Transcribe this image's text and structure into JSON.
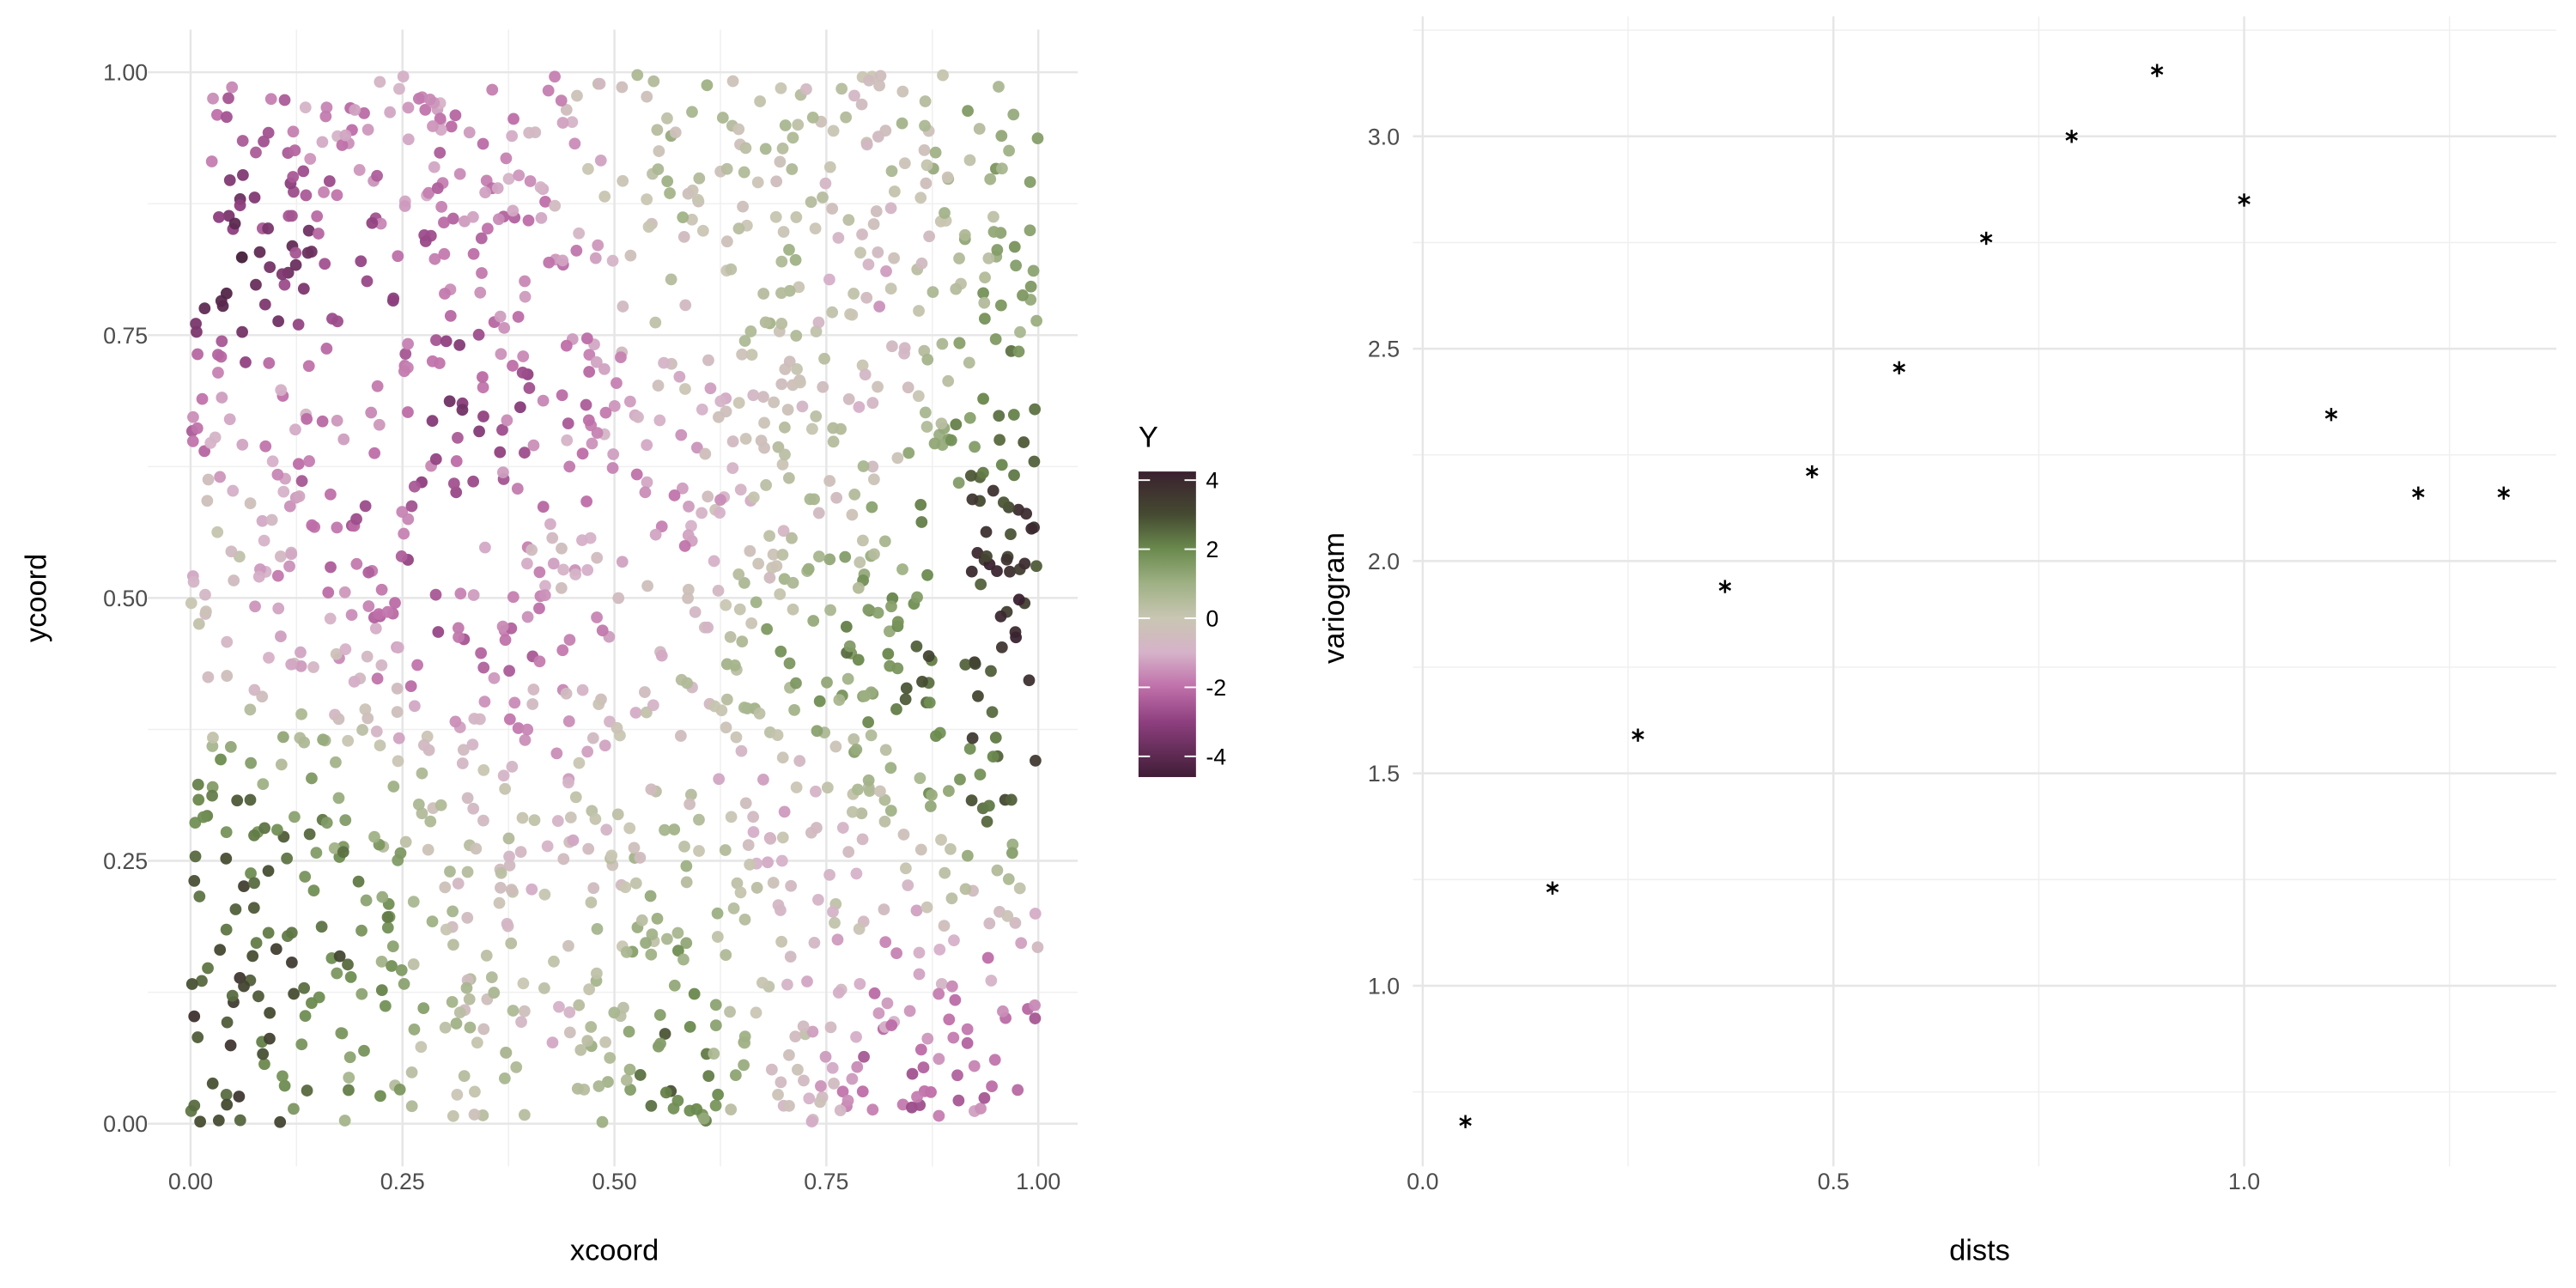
{
  "chart_data": [
    {
      "type": "scatter",
      "title": "",
      "xlabel": "xcoord",
      "ylabel": "ycoord",
      "xlim": [
        0,
        1
      ],
      "ylim": [
        0,
        1
      ],
      "xticks": [
        "0.00",
        "0.25",
        "0.50",
        "0.75",
        "1.00"
      ],
      "yticks": [
        "0.00",
        "0.25",
        "0.50",
        "0.75",
        "1.00"
      ],
      "xtick_values": [
        0,
        0.25,
        0.5,
        0.75,
        1
      ],
      "ytick_values": [
        0,
        0.25,
        0.5,
        0.75,
        1
      ],
      "grid": true,
      "n_points": 1500,
      "color_variable": "Y",
      "field_description": "approximate mean of Y on an 8x8 grid, rows from y=1 (top) to y=0 (bottom), columns from x=0 to x=1",
      "field_grid": [
        [
          -2,
          -1.5,
          -1.5,
          -1,
          0.5,
          0,
          0,
          1
        ],
        [
          -4,
          -3,
          -2,
          -1.5,
          0,
          0.5,
          -1,
          1
        ],
        [
          -2,
          -1,
          -3,
          -2,
          -1,
          0,
          -0.5,
          2
        ],
        [
          -0.5,
          -3,
          -2,
          -1,
          -1.5,
          -0.5,
          1,
          3.5
        ],
        [
          -0.5,
          -1,
          -2.5,
          -1.5,
          -0.5,
          1.5,
          2,
          3.5
        ],
        [
          2,
          1,
          0,
          -0.5,
          0,
          -1,
          0.5,
          2.5
        ],
        [
          3,
          2.5,
          0,
          -0.5,
          1,
          0,
          -1,
          -1
        ],
        [
          3,
          1.5,
          0.5,
          -0.5,
          2.5,
          0,
          -2,
          -2
        ]
      ],
      "legend": {
        "title": "Y",
        "placement": "right",
        "range": [
          -4.6,
          4.25
        ],
        "ticks": [
          "4",
          "2",
          "0",
          "-2",
          "-4"
        ],
        "tick_values": [
          4,
          2,
          0,
          -2,
          -4
        ],
        "palette": [
          {
            "value": -4.6,
            "color": "#3f1d36"
          },
          {
            "value": -3,
            "color": "#8e3f7f"
          },
          {
            "value": -2,
            "color": "#bf6fa9"
          },
          {
            "value": -1,
            "color": "#d6b2c9"
          },
          {
            "value": 0,
            "color": "#c9c6b3"
          },
          {
            "value": 1,
            "color": "#9fb185"
          },
          {
            "value": 2,
            "color": "#6b8a4e"
          },
          {
            "value": 3,
            "color": "#454a31"
          },
          {
            "value": 4.25,
            "color": "#3a2130"
          }
        ]
      }
    },
    {
      "type": "scatter",
      "title": "",
      "xlabel": "dists",
      "ylabel": "variogram",
      "xlim": [
        -0.01,
        1.38
      ],
      "ylim": [
        0.58,
        3.27
      ],
      "xticks": [
        "0.0",
        "0.5",
        "1.0"
      ],
      "xtick_values": [
        0,
        0.5,
        1.0
      ],
      "yticks": [
        "1.0",
        "1.5",
        "2.0",
        "2.5",
        "3.0"
      ],
      "ytick_values": [
        1.0,
        1.5,
        2.0,
        2.5,
        3.0
      ],
      "grid": true,
      "marker": "asterisk",
      "x": [
        0.052,
        0.158,
        0.262,
        0.368,
        0.474,
        0.58,
        0.686,
        0.79,
        0.894,
        1.0,
        1.106,
        1.212,
        1.316
      ],
      "y": [
        0.68,
        1.23,
        1.59,
        1.94,
        2.21,
        2.455,
        2.76,
        3.0,
        3.155,
        2.85,
        2.345,
        2.16,
        2.16
      ]
    }
  ]
}
